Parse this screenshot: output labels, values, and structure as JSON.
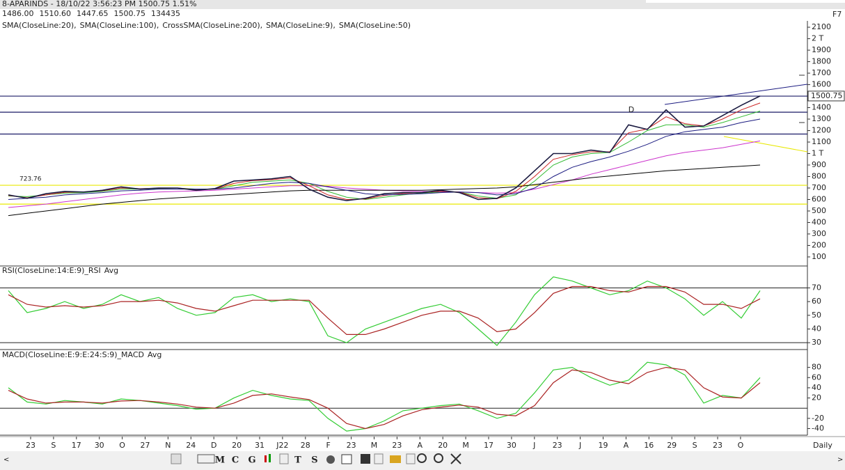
{
  "title": "8-APARINDS - 18/10/22 3:56:23 PM 1500.75 1.51%",
  "quote": [
    {
      "text": "1486.00",
      "color": "#993399"
    },
    {
      "text": "1510.60",
      "color": "#009900"
    },
    {
      "text": "1447.65",
      "color": "#cc0000"
    },
    {
      "text": "1500.75",
      "color": "#222222"
    },
    {
      "text": "134435",
      "color": "#222222"
    }
  ],
  "shortcut": "F7",
  "price_pane": {
    "ylim": [
      21,
      2155
    ],
    "yticks": [
      100,
      200,
      300,
      400,
      500,
      600,
      700,
      800,
      900,
      {
        "value": 1000,
        "label": "1 T"
      },
      1100,
      1200,
      1300,
      1400,
      1500,
      1600,
      1700,
      1800,
      1900,
      {
        "value": 2000,
        "label": "2 T"
      },
      2100
    ],
    "last_price": 1500.75,
    "levels": [
      {
        "value": 1500,
        "color": "#1a1a66"
      },
      {
        "value": 1360,
        "color": "#1a1a66"
      },
      {
        "value": 1170,
        "color": "#1a1a66"
      },
      {
        "value": 723.76,
        "color": "#e8e800"
      },
      {
        "value": 560,
        "color": "#e8e800"
      }
    ],
    "marker": "D",
    "close": [
      640,
      610,
      650,
      670,
      665,
      680,
      710,
      690,
      700,
      700,
      680,
      695,
      760,
      770,
      780,
      800,
      690,
      620,
      590,
      610,
      650,
      660,
      660,
      680,
      660,
      600,
      610,
      700,
      850,
      1000,
      1000,
      1030,
      1010,
      1250,
      1210,
      1380,
      1230,
      1240,
      1330,
      1420,
      1500.75
    ],
    "series": [
      {
        "name": "SMA(CloseLine:20),",
        "color": "#33bb33",
        "values": [
          630,
          625,
          640,
          655,
          660,
          670,
          690,
          690,
          695,
          700,
          690,
          690,
          720,
          750,
          760,
          770,
          740,
          670,
          620,
          600,
          620,
          640,
          655,
          665,
          665,
          630,
          610,
          640,
          760,
          900,
          970,
          1000,
          1010,
          1100,
          1200,
          1250,
          1250,
          1230,
          1270,
          1320,
          1370
        ]
      },
      {
        "name": "SMA(CloseLine:100),",
        "color": "#cc33cc",
        "values": [
          530,
          545,
          560,
          580,
          600,
          620,
          640,
          655,
          665,
          670,
          675,
          680,
          690,
          700,
          710,
          720,
          720,
          715,
          700,
          690,
          680,
          675,
          670,
          668,
          665,
          660,
          655,
          660,
          690,
          730,
          770,
          820,
          860,
          900,
          940,
          980,
          1010,
          1030,
          1050,
          1080,
          1110
        ]
      },
      {
        "name": "CrossSMA(CloseLine:200),",
        "color": "#000000",
        "values": [
          460,
          480,
          500,
          520,
          540,
          560,
          575,
          590,
          605,
          615,
          625,
          635,
          645,
          655,
          665,
          675,
          680,
          680,
          680,
          680,
          680,
          680,
          680,
          685,
          690,
          695,
          700,
          710,
          730,
          750,
          770,
          790,
          805,
          820,
          835,
          850,
          860,
          870,
          880,
          890,
          900
        ]
      },
      {
        "name": "SMA(CloseLine:9),",
        "color": "#cc2222",
        "values": [
          635,
          615,
          640,
          662,
          666,
          676,
          700,
          694,
          698,
          700,
          686,
          690,
          740,
          764,
          772,
          788,
          720,
          640,
          600,
          604,
          635,
          652,
          660,
          672,
          664,
          615,
          606,
          670,
          800,
          950,
          990,
          1015,
          1015,
          1180,
          1215,
          1320,
          1260,
          1240,
          1300,
          1380,
          1440
        ]
      },
      {
        "name": "SMA(CloseLine:50)",
        "color": "#1a1a80",
        "values": [
          600,
          610,
          620,
          640,
          650,
          660,
          675,
          680,
          690,
          690,
          690,
          690,
          700,
          720,
          740,
          750,
          740,
          710,
          680,
          650,
          640,
          645,
          650,
          660,
          665,
          660,
          640,
          650,
          700,
          800,
          880,
          930,
          970,
          1020,
          1080,
          1150,
          1190,
          1210,
          1230,
          1270,
          1300
        ]
      }
    ]
  },
  "rsi_pane": {
    "label": "RSI(CloseLine:14:E:9)_RSI",
    "avg_label": "Avg",
    "ylim": [
      25,
      86
    ],
    "yticks": [
      30,
      40,
      50,
      60,
      70
    ],
    "levels": [
      70,
      30
    ],
    "rsi": [
      68,
      52,
      55,
      60,
      55,
      58,
      65,
      60,
      63,
      55,
      50,
      52,
      63,
      65,
      60,
      62,
      60,
      35,
      30,
      40,
      45,
      50,
      55,
      58,
      52,
      40,
      28,
      45,
      65,
      78,
      75,
      70,
      65,
      68,
      75,
      70,
      62,
      50,
      60,
      48,
      68
    ],
    "avg": [
      65,
      58,
      56,
      57,
      56,
      57,
      60,
      60,
      61,
      59,
      55,
      53,
      57,
      61,
      61,
      61,
      61,
      48,
      36,
      36,
      40,
      45,
      50,
      53,
      53,
      48,
      38,
      40,
      52,
      66,
      71,
      71,
      68,
      67,
      71,
      71,
      67,
      58,
      58,
      55,
      62
    ]
  },
  "macd_pane": {
    "label": "MACD(CloseLine:E:9:E:24:S:9)_MACD",
    "avg_label": "Avg",
    "ylim": [
      -53,
      115
    ],
    "yticks": [
      -40,
      -20,
      20,
      40,
      60,
      80
    ],
    "levels": [
      0
    ],
    "macd": [
      40,
      12,
      8,
      15,
      12,
      8,
      18,
      15,
      10,
      5,
      -2,
      0,
      20,
      35,
      25,
      18,
      15,
      -20,
      -45,
      -40,
      -25,
      -5,
      0,
      5,
      8,
      -5,
      -20,
      -10,
      30,
      75,
      80,
      60,
      45,
      55,
      90,
      85,
      65,
      10,
      25,
      20,
      60
    ],
    "avg": [
      35,
      18,
      10,
      12,
      12,
      10,
      14,
      15,
      12,
      8,
      2,
      0,
      10,
      25,
      28,
      22,
      17,
      0,
      -30,
      -40,
      -32,
      -15,
      -3,
      2,
      6,
      2,
      -12,
      -15,
      5,
      50,
      75,
      70,
      55,
      48,
      70,
      80,
      75,
      40,
      22,
      20,
      50
    ]
  },
  "x_labels": [
    "23",
    "S",
    "17",
    "30",
    "O",
    "27",
    "N",
    "24",
    "D",
    "20",
    "31",
    "J22",
    "28",
    "F",
    "23",
    "M",
    "23",
    "A",
    "20",
    "M",
    "17",
    "30",
    "J",
    "23",
    "J",
    "19",
    "A",
    "16",
    "29",
    "S",
    "23",
    "O"
  ],
  "period": "Daily",
  "toolbar": [
    "M",
    "C",
    "G",
    "T",
    "S"
  ]
}
